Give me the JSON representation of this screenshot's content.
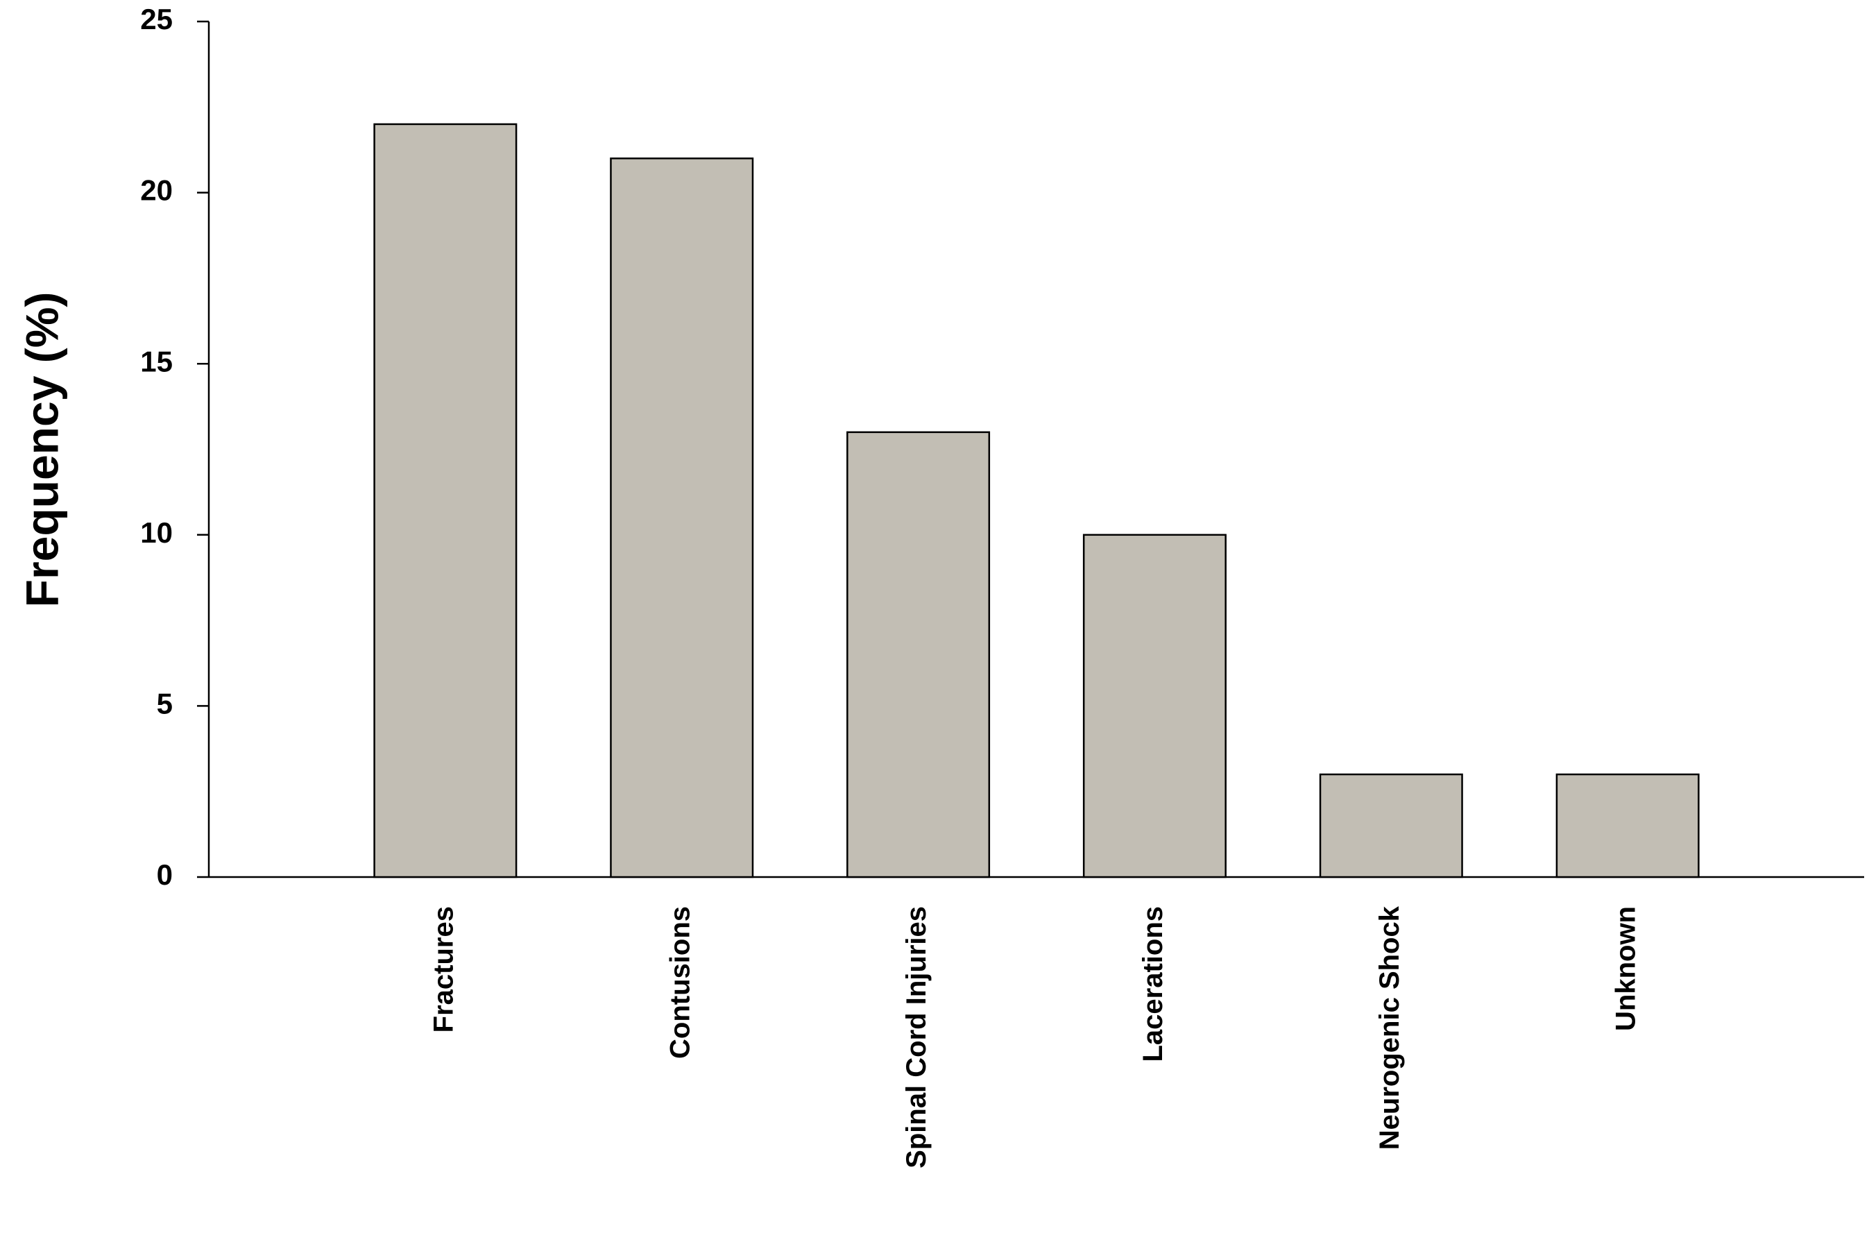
{
  "chart_data": {
    "type": "bar",
    "y_label": "Frequency (%)",
    "categories": [
      "Fractures",
      "Contusions",
      "Spinal Cord Injuries",
      "Lacerations",
      "Neurogenic Shock",
      "Unknown"
    ],
    "values": [
      22,
      21,
      13,
      10,
      3,
      3
    ],
    "color": "#c2beb4",
    "ylim": [
      0,
      25
    ],
    "yticks": [
      0,
      5,
      10,
      15,
      20,
      25
    ]
  }
}
